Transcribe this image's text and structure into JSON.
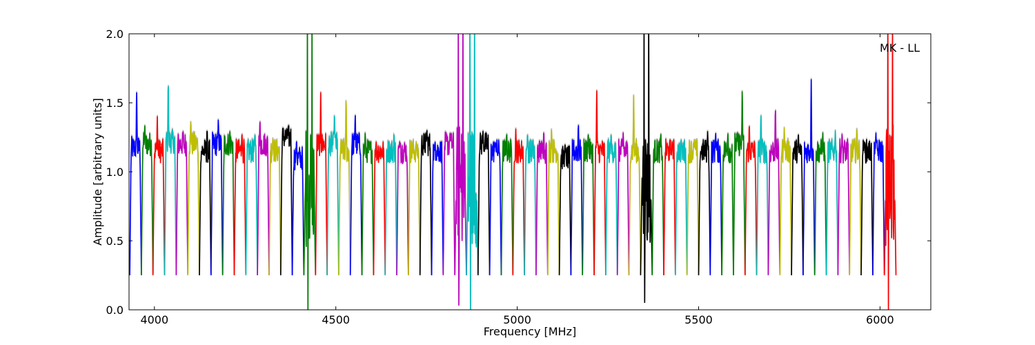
{
  "chart_data": {
    "type": "line",
    "title": "",
    "annotation": "MK - LL",
    "xlabel": "Frequency [MHz]",
    "ylabel": "Amplitude [arbitrary units]",
    "xlim": [
      3930,
      6140
    ],
    "ylim": [
      0.0,
      2.0
    ],
    "xticks": [
      4000,
      4500,
      5000,
      5500,
      6000
    ],
    "xtick_labels": [
      "4000",
      "4500",
      "5000",
      "5500",
      "6000"
    ],
    "yticks": [
      0.0,
      0.5,
      1.0,
      1.5,
      2.0
    ],
    "ytick_labels": [
      "0.0",
      "0.5",
      "1.0",
      "1.5",
      "2.0"
    ],
    "grid": false,
    "band_width_mhz": 32,
    "band_spacing_mhz": 32,
    "first_band_start_mhz": 3932,
    "color_cycle": [
      "#0000ff",
      "#008000",
      "#ff0000",
      "#00bfbf",
      "#bf00bf",
      "#bfbf00",
      "#000000"
    ],
    "shadow_color": "#c0c0c0",
    "series": [
      {
        "start": 3932,
        "level": 1.17,
        "peak": 1.64,
        "color": "#0000ff"
      },
      {
        "start": 3964,
        "level": 1.2,
        "peak": 1.35,
        "color": "#008000"
      },
      {
        "start": 3996,
        "level": 1.15,
        "peak": 1.42,
        "color": "#ff0000"
      },
      {
        "start": 4028,
        "level": 1.22,
        "peak": 1.73,
        "color": "#00bfbf"
      },
      {
        "start": 4060,
        "level": 1.2,
        "peak": 1.3,
        "color": "#bf00bf"
      },
      {
        "start": 4092,
        "level": 1.2,
        "peak": 1.39,
        "color": "#bfbf00"
      },
      {
        "start": 4124,
        "level": 1.15,
        "peak": 1.34,
        "color": "#000000"
      },
      {
        "start": 4156,
        "level": 1.2,
        "peak": 1.4,
        "color": "#0000ff"
      },
      {
        "start": 4188,
        "level": 1.2,
        "peak": 1.3,
        "color": "#008000"
      },
      {
        "start": 4220,
        "level": 1.15,
        "peak": 1.3,
        "color": "#ff0000"
      },
      {
        "start": 4252,
        "level": 1.15,
        "peak": 1.3,
        "color": "#00bfbf"
      },
      {
        "start": 4284,
        "level": 1.2,
        "peak": 1.4,
        "color": "#bf00bf"
      },
      {
        "start": 4316,
        "level": 1.15,
        "peak": 1.25,
        "color": "#bfbf00"
      },
      {
        "start": 4348,
        "level": 1.25,
        "peak": 1.32,
        "color": "#000000"
      },
      {
        "start": 4380,
        "level": 1.1,
        "peak": 1.25,
        "color": "#0000ff"
      },
      {
        "start": 4412,
        "level": 0.9,
        "peak": 2.0,
        "min": 0.0,
        "noisy": true,
        "color": "#008000"
      },
      {
        "start": 4444,
        "level": 1.2,
        "peak": 1.58,
        "color": "#ff0000"
      },
      {
        "start": 4476,
        "level": 1.2,
        "peak": 1.45,
        "color": "#00bfbf"
      },
      {
        "start": 4508,
        "level": 1.15,
        "peak": 1.6,
        "color": "#bfbf00"
      },
      {
        "start": 4540,
        "level": 1.2,
        "peak": 1.44,
        "color": "#0000ff"
      },
      {
        "start": 4572,
        "level": 1.15,
        "peak": 1.3,
        "color": "#008000"
      },
      {
        "start": 4604,
        "level": 1.15,
        "peak": 1.22,
        "color": "#ff0000"
      },
      {
        "start": 4636,
        "level": 1.15,
        "peak": 1.3,
        "color": "#00bfbf"
      },
      {
        "start": 4668,
        "level": 1.15,
        "peak": 1.22,
        "color": "#bf00bf"
      },
      {
        "start": 4700,
        "level": 1.15,
        "peak": 1.22,
        "color": "#bfbf00"
      },
      {
        "start": 4732,
        "level": 1.2,
        "peak": 1.32,
        "color": "#000000"
      },
      {
        "start": 4764,
        "level": 1.15,
        "peak": 1.22,
        "color": "#0000ff"
      },
      {
        "start": 4796,
        "level": 1.2,
        "peak": 1.3,
        "color": "#bf00bf"
      },
      {
        "start": 4828,
        "level": 0.9,
        "peak": 2.0,
        "min": 0.08,
        "noisy": true,
        "color": "#bf00bf"
      },
      {
        "start": 4860,
        "level": 0.9,
        "peak": 2.0,
        "min": 0.0,
        "noisy": true,
        "color": "#00bfbf"
      },
      {
        "start": 4892,
        "level": 1.2,
        "peak": 1.3,
        "color": "#000000"
      },
      {
        "start": 4924,
        "level": 1.15,
        "peak": 1.22,
        "color": "#0000ff"
      },
      {
        "start": 4956,
        "level": 1.15,
        "peak": 1.3,
        "color": "#008000"
      },
      {
        "start": 4988,
        "level": 1.15,
        "peak": 1.32,
        "color": "#ff0000"
      },
      {
        "start": 5020,
        "level": 1.15,
        "peak": 1.3,
        "color": "#00bfbf"
      },
      {
        "start": 5052,
        "level": 1.15,
        "peak": 1.32,
        "color": "#bf00bf"
      },
      {
        "start": 5084,
        "level": 1.15,
        "peak": 1.32,
        "color": "#bfbf00"
      },
      {
        "start": 5116,
        "level": 1.1,
        "peak": 1.22,
        "color": "#000000"
      },
      {
        "start": 5148,
        "level": 1.15,
        "peak": 1.38,
        "color": "#0000ff"
      },
      {
        "start": 5180,
        "level": 1.15,
        "peak": 1.3,
        "color": "#008000"
      },
      {
        "start": 5212,
        "level": 1.15,
        "peak": 1.61,
        "color": "#ff0000"
      },
      {
        "start": 5244,
        "level": 1.15,
        "peak": 1.3,
        "color": "#00bfbf"
      },
      {
        "start": 5276,
        "level": 1.15,
        "peak": 1.3,
        "color": "#bf00bf"
      },
      {
        "start": 5308,
        "level": 1.15,
        "peak": 1.58,
        "color": "#bfbf00"
      },
      {
        "start": 5340,
        "level": 0.9,
        "peak": 2.0,
        "min": 0.1,
        "noisy": true,
        "color": "#000000"
      },
      {
        "start": 5372,
        "level": 1.15,
        "peak": 1.3,
        "color": "#008000"
      },
      {
        "start": 5404,
        "level": 1.15,
        "peak": 1.22,
        "color": "#ff0000"
      },
      {
        "start": 5436,
        "level": 1.15,
        "peak": 1.25,
        "color": "#00bfbf"
      },
      {
        "start": 5468,
        "level": 1.15,
        "peak": 1.25,
        "color": "#bfbf00"
      },
      {
        "start": 5500,
        "level": 1.15,
        "peak": 1.3,
        "color": "#000000"
      },
      {
        "start": 5532,
        "level": 1.15,
        "peak": 1.3,
        "color": "#0000ff"
      },
      {
        "start": 5564,
        "level": 1.15,
        "peak": 1.3,
        "color": "#008000"
      },
      {
        "start": 5596,
        "level": 1.2,
        "peak": 1.66,
        "color": "#008000"
      },
      {
        "start": 5628,
        "level": 1.15,
        "peak": 1.38,
        "color": "#ff0000"
      },
      {
        "start": 5660,
        "level": 1.15,
        "peak": 1.45,
        "color": "#00bfbf"
      },
      {
        "start": 5692,
        "level": 1.15,
        "peak": 1.52,
        "color": "#bf00bf"
      },
      {
        "start": 5724,
        "level": 1.15,
        "peak": 1.32,
        "color": "#bfbf00"
      },
      {
        "start": 5756,
        "level": 1.15,
        "peak": 1.3,
        "color": "#000000"
      },
      {
        "start": 5788,
        "level": 1.15,
        "peak": 1.72,
        "color": "#0000ff"
      },
      {
        "start": 5820,
        "level": 1.15,
        "peak": 1.3,
        "color": "#008000"
      },
      {
        "start": 5852,
        "level": 1.15,
        "peak": 1.3,
        "color": "#00bfbf"
      },
      {
        "start": 5884,
        "level": 1.15,
        "peak": 1.3,
        "color": "#bf00bf"
      },
      {
        "start": 5916,
        "level": 1.15,
        "peak": 1.34,
        "color": "#bfbf00"
      },
      {
        "start": 5948,
        "level": 1.15,
        "peak": 1.22,
        "color": "#000000"
      },
      {
        "start": 5980,
        "level": 1.15,
        "peak": 1.3,
        "color": "#0000ff"
      },
      {
        "start": 6012,
        "level": 0.9,
        "peak": 2.0,
        "min": 0.0,
        "noisy": true,
        "color": "#ff0000"
      }
    ]
  }
}
